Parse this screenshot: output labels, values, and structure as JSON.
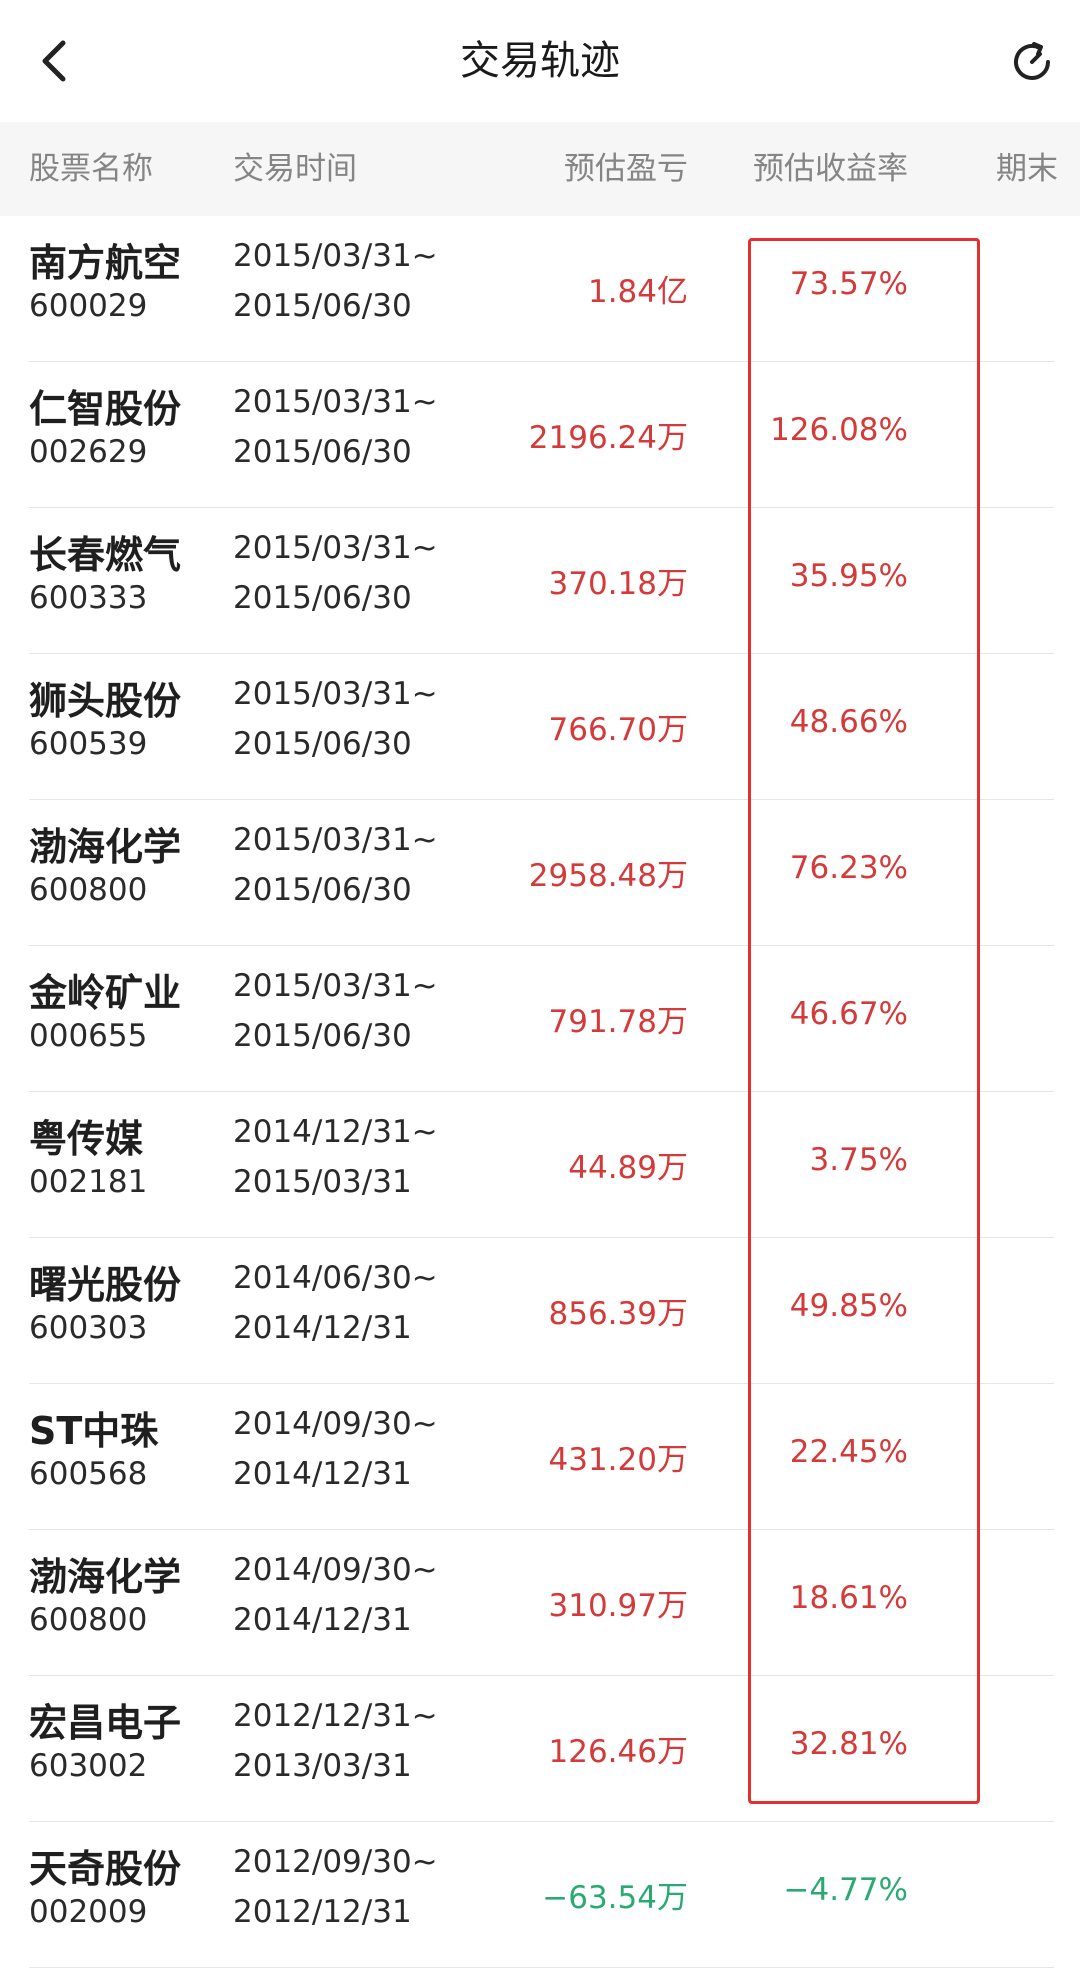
{
  "nav": {
    "title": "交易轨迹",
    "back_icon": "chevron-left-icon",
    "refresh_icon": "refresh-icon"
  },
  "header": {
    "stock_name": "股票名称",
    "trade_time": "交易时间",
    "est_pnl": "预估盈亏",
    "est_return": "预估收益率",
    "period_end": "期末"
  },
  "colors": {
    "up": "#d43a3a",
    "down": "#2aaa72",
    "highlight": "#e23030"
  },
  "rows": [
    {
      "name": "南方航空",
      "code": "600029",
      "start": "2015/03/31~",
      "end": "2015/06/30",
      "pnl": "1.84亿",
      "rate": "73.57%",
      "trend": "up"
    },
    {
      "name": "仁智股份",
      "code": "002629",
      "start": "2015/03/31~",
      "end": "2015/06/30",
      "pnl": "2196.24万",
      "rate": "126.08%",
      "trend": "up"
    },
    {
      "name": "长春燃气",
      "code": "600333",
      "start": "2015/03/31~",
      "end": "2015/06/30",
      "pnl": "370.18万",
      "rate": "35.95%",
      "trend": "up"
    },
    {
      "name": "狮头股份",
      "code": "600539",
      "start": "2015/03/31~",
      "end": "2015/06/30",
      "pnl": "766.70万",
      "rate": "48.66%",
      "trend": "up"
    },
    {
      "name": "渤海化学",
      "code": "600800",
      "start": "2015/03/31~",
      "end": "2015/06/30",
      "pnl": "2958.48万",
      "rate": "76.23%",
      "trend": "up"
    },
    {
      "name": "金岭矿业",
      "code": "000655",
      "start": "2015/03/31~",
      "end": "2015/06/30",
      "pnl": "791.78万",
      "rate": "46.67%",
      "trend": "up"
    },
    {
      "name": "粤传媒",
      "code": "002181",
      "start": "2014/12/31~",
      "end": "2015/03/31",
      "pnl": "44.89万",
      "rate": "3.75%",
      "trend": "up"
    },
    {
      "name": "曙光股份",
      "code": "600303",
      "start": "2014/06/30~",
      "end": "2014/12/31",
      "pnl": "856.39万",
      "rate": "49.85%",
      "trend": "up"
    },
    {
      "name": "ST中珠",
      "code": "600568",
      "start": "2014/09/30~",
      "end": "2014/12/31",
      "pnl": "431.20万",
      "rate": "22.45%",
      "trend": "up"
    },
    {
      "name": "渤海化学",
      "code": "600800",
      "start": "2014/09/30~",
      "end": "2014/12/31",
      "pnl": "310.97万",
      "rate": "18.61%",
      "trend": "up"
    },
    {
      "name": "宏昌电子",
      "code": "603002",
      "start": "2012/12/31~",
      "end": "2013/03/31",
      "pnl": "126.46万",
      "rate": "32.81%",
      "trend": "up"
    },
    {
      "name": "天奇股份",
      "code": "002009",
      "start": "2012/09/30~",
      "end": "2012/12/31",
      "pnl": "−63.54万",
      "rate": "−4.77%",
      "trend": "down"
    }
  ]
}
